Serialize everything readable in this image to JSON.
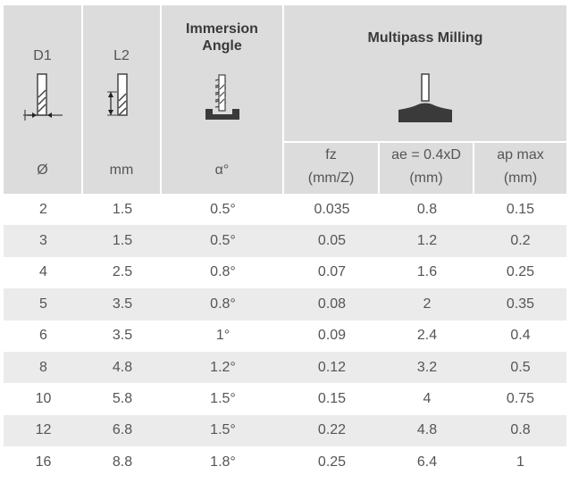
{
  "header": {
    "d1_label": "D1",
    "d1_unit": "Ø",
    "l2_label": "L2",
    "l2_unit": "mm",
    "immersion_title_line1": "Immersion",
    "immersion_title_line2": "Angle",
    "immersion_unit": "α°",
    "multipass_title": "Multipass Milling",
    "fz_label": "fz",
    "fz_unit": "(mm/Z)",
    "ae_label": "ae = 0.4xD",
    "ae_unit": "(mm)",
    "ap_label": "ap max",
    "ap_unit": "(mm)"
  },
  "icons": {
    "d1": "tool-diameter-icon",
    "l2": "tool-length-icon",
    "immersion": "helical-immersion-icon",
    "multipass": "multipass-milling-icon"
  },
  "rows": [
    [
      "2",
      "1.5",
      "0.5°",
      "0.035",
      "0.8",
      "0.15"
    ],
    [
      "3",
      "1.5",
      "0.5°",
      "0.05",
      "1.2",
      "0.2"
    ],
    [
      "4",
      "2.5",
      "0.8°",
      "0.07",
      "1.6",
      "0.25"
    ],
    [
      "5",
      "3.5",
      "0.8°",
      "0.08",
      "2",
      "0.35"
    ],
    [
      "6",
      "3.5",
      "1°",
      "0.09",
      "2.4",
      "0.4"
    ],
    [
      "8",
      "4.8",
      "1.2°",
      "0.12",
      "3.2",
      "0.5"
    ],
    [
      "10",
      "5.8",
      "1.5°",
      "0.15",
      "4",
      "0.75"
    ],
    [
      "12",
      "6.8",
      "1.5°",
      "0.22",
      "4.8",
      "0.8"
    ],
    [
      "16",
      "8.8",
      "1.8°",
      "0.25",
      "6.4",
      "1"
    ]
  ]
}
